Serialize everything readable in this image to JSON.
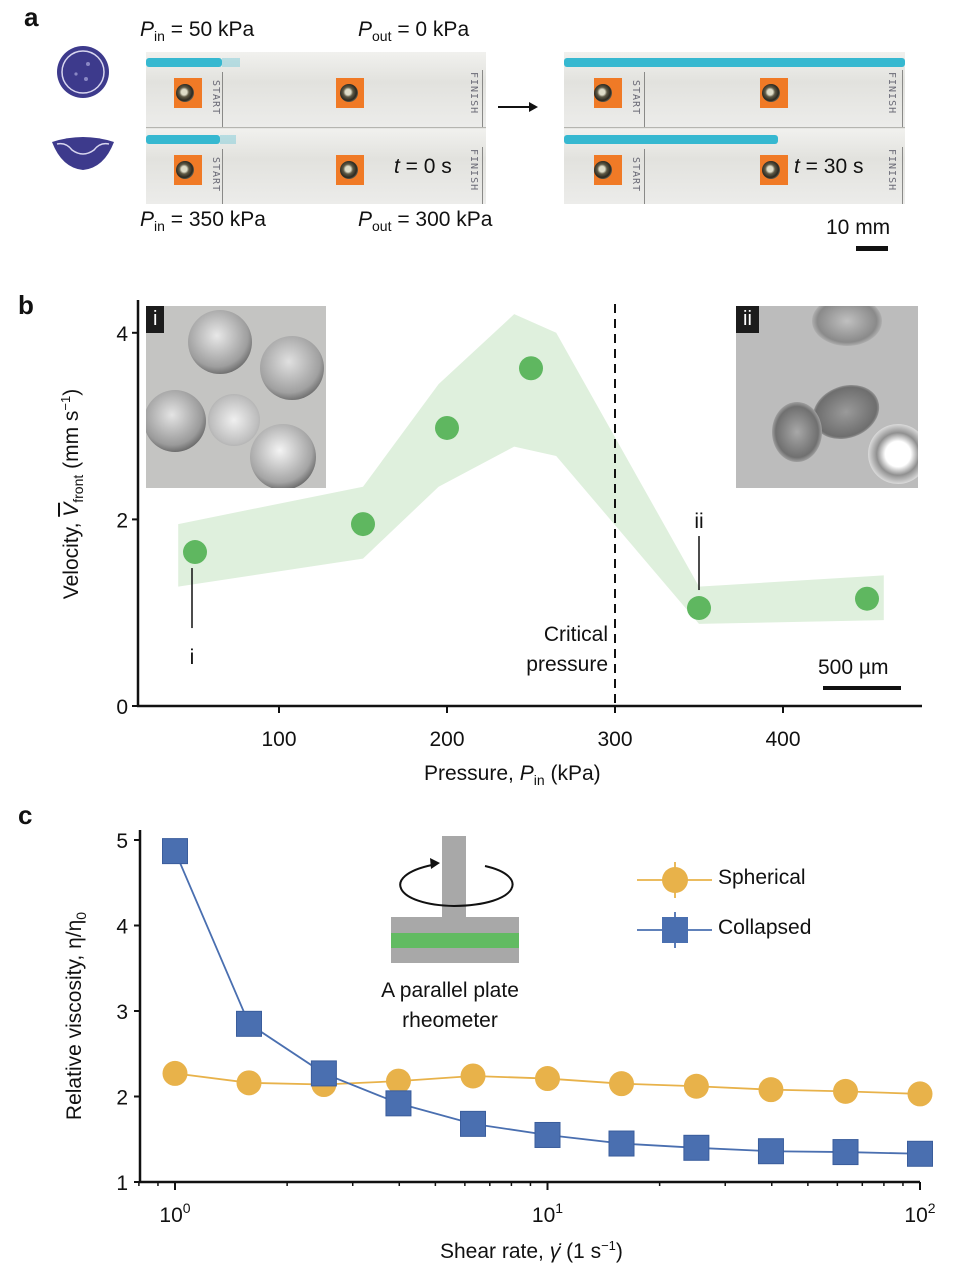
{
  "panel_a": {
    "letter": "a",
    "top_labels": {
      "p_in_sym": "P",
      "p_in_sub": "in",
      "p_in_val": " = 50 kPa",
      "p_out_sym": "P",
      "p_out_sub": "out",
      "p_out_val": " = 0 kPa"
    },
    "bottom_labels": {
      "p_in_sym": "P",
      "p_in_sub": "in",
      "p_in_val": " = 350 kPa",
      "p_out_sym": "P",
      "p_out_sub": "out",
      "p_out_val": " = 300 kPa"
    },
    "icons": [
      "spherical-capsule-icon",
      "collapsed-capsule-icon"
    ],
    "channel_text_start": "START",
    "channel_text_finish": "FINISH",
    "time_left_sym": "t",
    "time_left_val": " = 0 s",
    "time_right_sym": "t",
    "time_right_val": " = 30 s",
    "scale_bar": "10 mm",
    "colors": {
      "dye": "#36b8d0",
      "tag": "#f07a26",
      "capsule": "#3d3a8c"
    }
  },
  "chart_data": [
    {
      "id": "b",
      "type": "scatter",
      "panel_letter": "b",
      "xlabel_pre": "Pressure, ",
      "xlabel_sym": "P",
      "xlabel_sub": "in",
      "xlabel_post": " (kPa)",
      "ylabel_pre": "Velocity, ",
      "ylabel_sym": "V",
      "ylabel_sub": "front",
      "ylabel_post": " (mm s",
      "ylabel_sup": "−1",
      "ylabel_end": ")",
      "xlim": [
        20,
        475
      ],
      "ylim": [
        0,
        4.4
      ],
      "xticks": [
        100,
        200,
        300,
        400
      ],
      "yticks": [
        0,
        2,
        4
      ],
      "grid": false,
      "series": [
        {
          "name": "Velocity",
          "x": [
            50,
            150,
            200,
            250,
            350,
            450
          ],
          "y": [
            1.65,
            1.95,
            2.98,
            3.62,
            1.05,
            1.15
          ],
          "color": "#5fb760"
        }
      ],
      "band": {
        "color": "#dff0dd",
        "x": [
          40,
          150,
          195,
          240,
          265,
          350,
          460
        ],
        "upper": [
          1.95,
          2.35,
          3.45,
          4.2,
          4.0,
          1.28,
          1.4
        ],
        "lower": [
          1.28,
          1.58,
          2.35,
          2.78,
          2.68,
          0.88,
          0.92
        ]
      },
      "critical_line": {
        "x": 300,
        "label_line1": "Critical",
        "label_line2": "pressure"
      },
      "annotations": [
        {
          "label": "i",
          "x": 50
        },
        {
          "label": "ii",
          "x": 350
        }
      ],
      "insets": [
        {
          "tag": "i",
          "description": "spherical capsules micrograph"
        },
        {
          "tag": "ii",
          "description": "collapsed capsules micrograph"
        }
      ],
      "scale_bar": "500 µm"
    },
    {
      "id": "c",
      "type": "line",
      "panel_letter": "c",
      "xscale": "log",
      "xlabel_pre": "Shear rate, ",
      "xlabel_sym": "γ̇",
      "xlabel_post": " (1 s",
      "xlabel_sup": "−1",
      "xlabel_end": ")",
      "ylabel": "Relative viscosity, η/η",
      "ylabel_sub": "0",
      "xlim": [
        0.75,
        100
      ],
      "ylim": [
        1,
        5.1
      ],
      "xticks": [
        {
          "base": "10",
          "exp": "0",
          "value": 1
        },
        {
          "base": "10",
          "exp": "1",
          "value": 10
        },
        {
          "base": "10",
          "exp": "2",
          "value": 100
        }
      ],
      "yticks": [
        1,
        2,
        3,
        4,
        5
      ],
      "grid": false,
      "legend": "top-right",
      "series": [
        {
          "name": "Spherical",
          "marker": "circle",
          "color": "#e8b24a",
          "x": [
            1.0,
            1.58,
            2.51,
            3.98,
            6.31,
            10.0,
            15.8,
            25.1,
            39.8,
            63.1,
            100
          ],
          "y": [
            2.27,
            2.16,
            2.14,
            2.18,
            2.24,
            2.21,
            2.15,
            2.12,
            2.08,
            2.06,
            2.03
          ]
        },
        {
          "name": "Collapsed",
          "marker": "square",
          "color": "#4a6fb0",
          "x": [
            1.0,
            1.58,
            2.51,
            3.98,
            6.31,
            10.0,
            15.8,
            25.1,
            39.8,
            63.1,
            100
          ],
          "y": [
            4.87,
            2.85,
            2.27,
            1.92,
            1.68,
            1.55,
            1.45,
            1.4,
            1.36,
            1.35,
            1.33
          ]
        }
      ],
      "inset": {
        "label_line1": "A parallel plate",
        "label_line2": "rheometer",
        "plate_color": "#a8a8a8",
        "sample_color": "#62bb62"
      }
    }
  ]
}
